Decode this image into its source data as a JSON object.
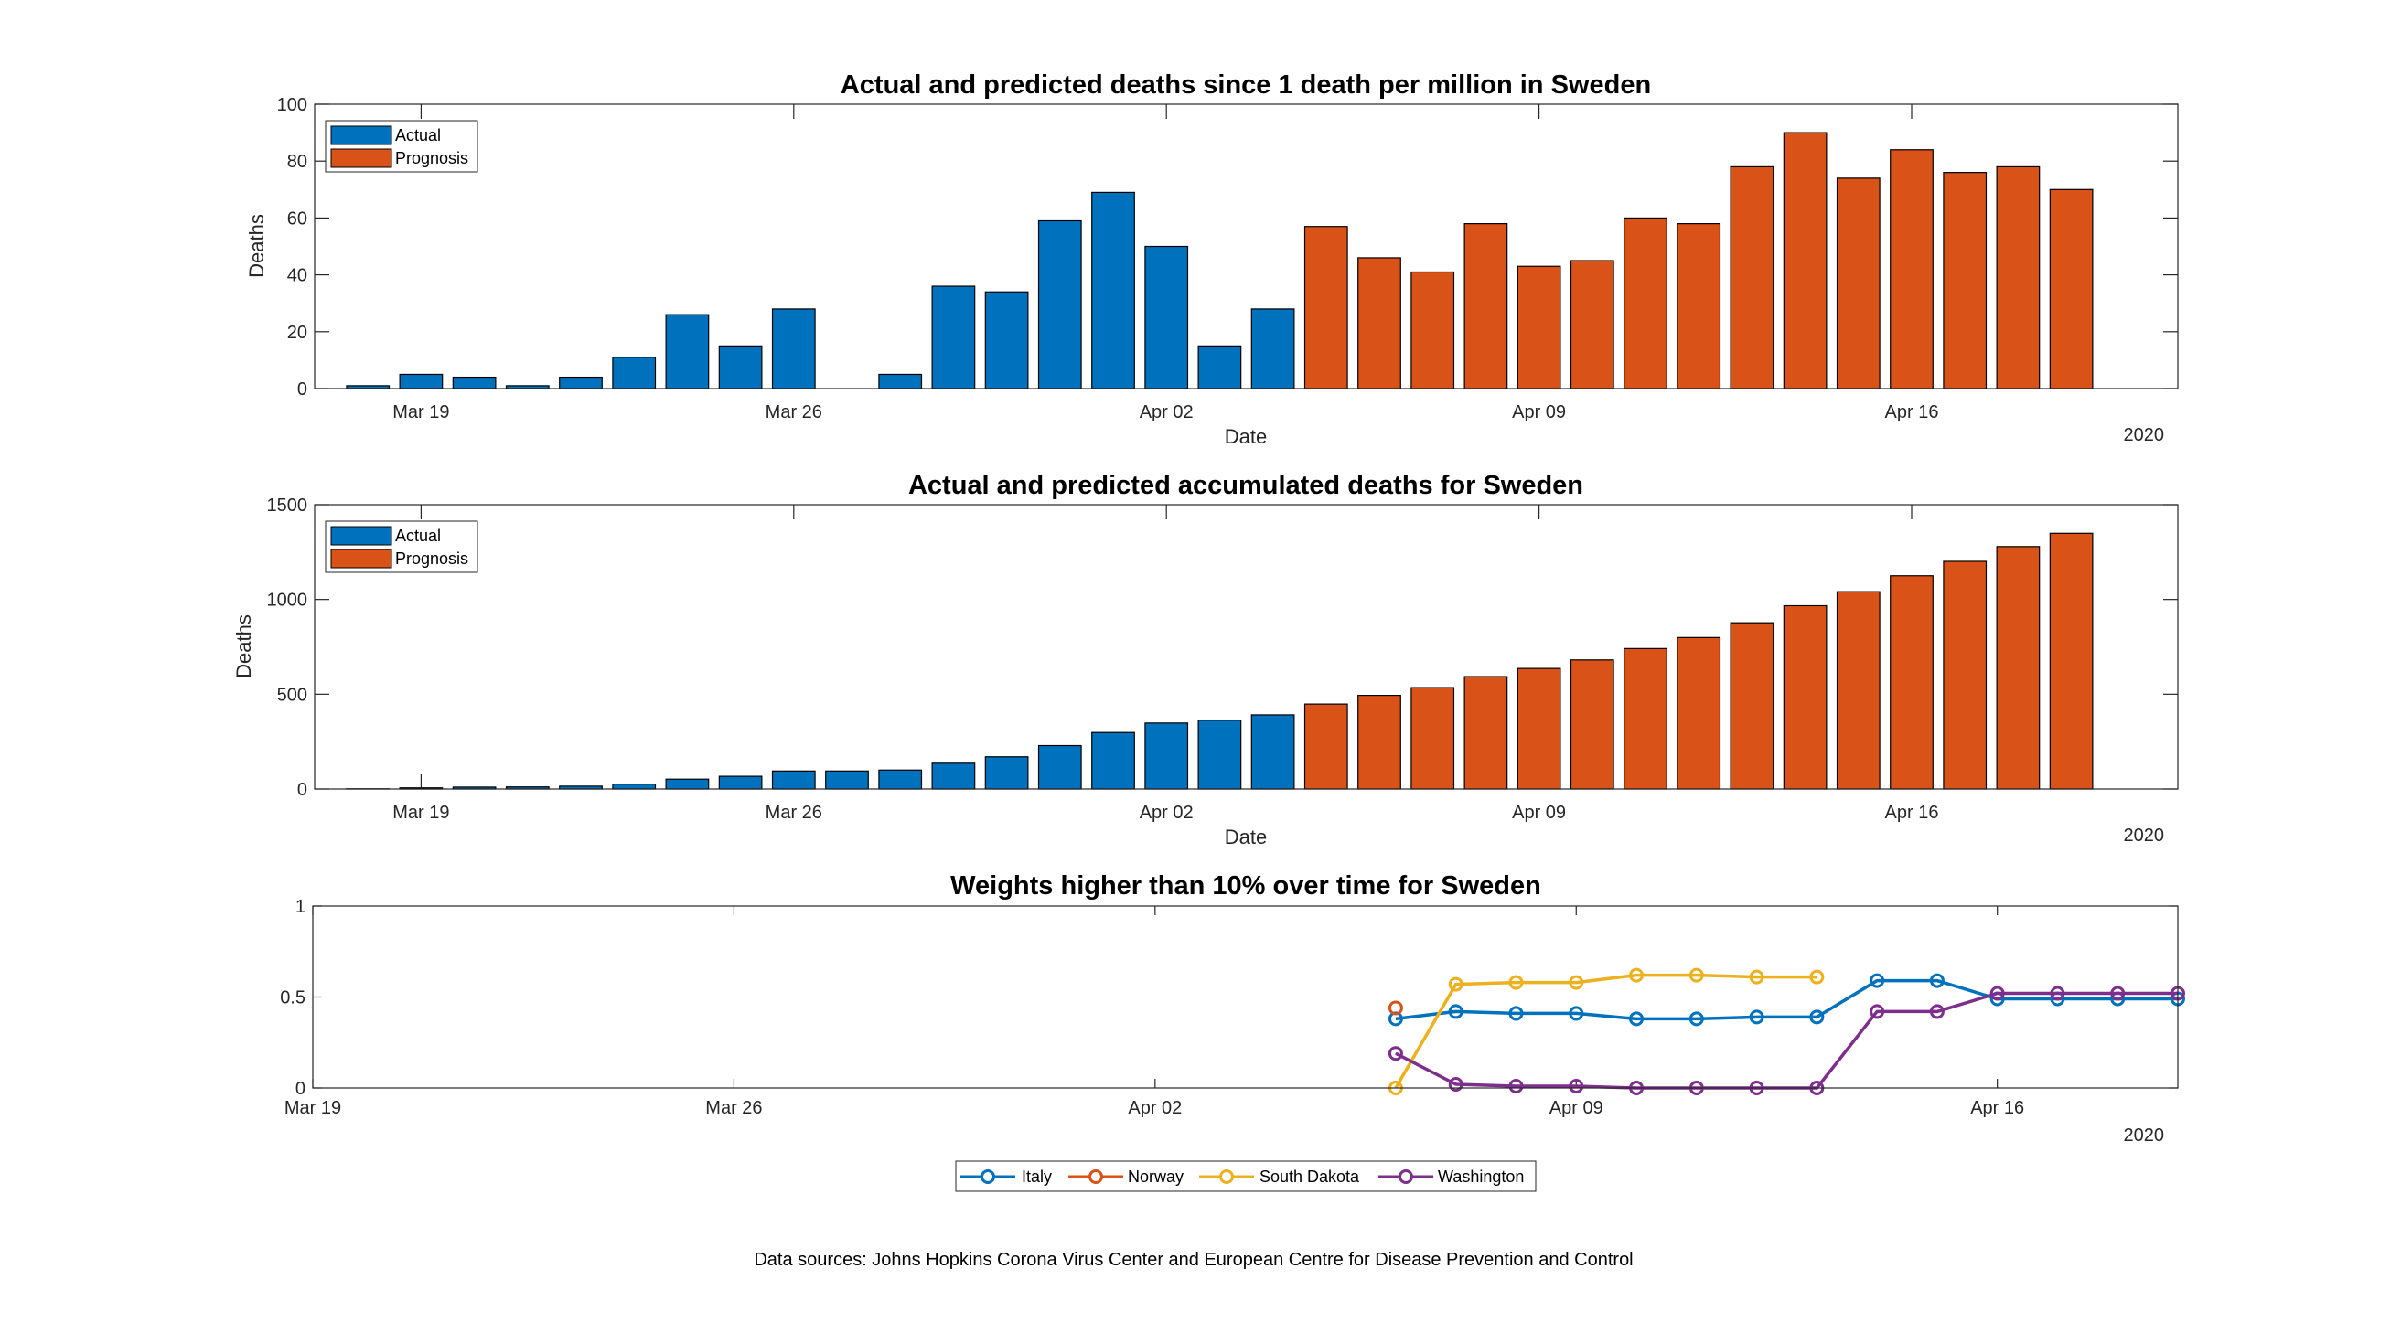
{
  "chart_data": [
    {
      "type": "bar",
      "title": "Actual and predicted deaths since 1 death per million in Sweden",
      "xlabel": "Date",
      "ylabel": "Deaths",
      "year_label": "2020",
      "ylim": [
        0,
        100
      ],
      "yticks": [
        0,
        20,
        40,
        60,
        80,
        100
      ],
      "xlim": [
        "2020-03-17",
        "2020-04-21"
      ],
      "xticks": [
        "Mar 19",
        "Mar 26",
        "Apr 02",
        "Apr 09",
        "Apr 16"
      ],
      "xtick_dates": [
        "2020-03-19",
        "2020-03-26",
        "2020-04-02",
        "2020-04-09",
        "2020-04-16"
      ],
      "legend_position": "top-left",
      "series": [
        {
          "name": "Actual",
          "color": "#0072BD",
          "x": [
            "2020-03-18",
            "2020-03-19",
            "2020-03-20",
            "2020-03-21",
            "2020-03-22",
            "2020-03-23",
            "2020-03-24",
            "2020-03-25",
            "2020-03-26",
            "2020-03-27",
            "2020-03-28",
            "2020-03-29",
            "2020-03-30",
            "2020-03-31",
            "2020-04-01",
            "2020-04-02",
            "2020-04-03",
            "2020-04-04",
            "2020-04-05"
          ],
          "values": [
            1,
            5,
            4,
            1,
            4,
            11,
            26,
            15,
            28,
            0,
            5,
            36,
            34,
            59,
            69,
            50,
            15,
            28,
            0
          ]
        },
        {
          "name": "Prognosis",
          "color": "#D95319",
          "x": [
            "2020-04-05",
            "2020-04-06",
            "2020-04-07",
            "2020-04-08",
            "2020-04-09",
            "2020-04-10",
            "2020-04-11",
            "2020-04-12",
            "2020-04-13",
            "2020-04-14",
            "2020-04-15",
            "2020-04-16",
            "2020-04-17",
            "2020-04-18",
            "2020-04-19"
          ],
          "values": [
            57,
            46,
            41,
            58,
            43,
            45,
            60,
            58,
            78,
            90,
            74,
            84,
            76,
            78,
            70
          ]
        }
      ]
    },
    {
      "type": "bar",
      "title": "Actual and predicted accumulated deaths for Sweden",
      "xlabel": "Date",
      "ylabel": "Deaths",
      "year_label": "2020",
      "ylim": [
        0,
        1500
      ],
      "yticks": [
        0,
        500,
        1000,
        1500
      ],
      "xlim": [
        "2020-03-17",
        "2020-04-21"
      ],
      "xticks": [
        "Mar 19",
        "Mar 26",
        "Apr 02",
        "Apr 09",
        "Apr 16"
      ],
      "xtick_dates": [
        "2020-03-19",
        "2020-03-26",
        "2020-04-02",
        "2020-04-09",
        "2020-04-16"
      ],
      "legend_position": "top-left",
      "series": [
        {
          "name": "Actual",
          "color": "#0072BD",
          "x": [
            "2020-03-18",
            "2020-03-19",
            "2020-03-20",
            "2020-03-21",
            "2020-03-22",
            "2020-03-23",
            "2020-03-24",
            "2020-03-25",
            "2020-03-26",
            "2020-03-27",
            "2020-03-28",
            "2020-03-29",
            "2020-03-30",
            "2020-03-31",
            "2020-04-01",
            "2020-04-02",
            "2020-04-03",
            "2020-04-04"
          ],
          "values": [
            1,
            6,
            10,
            11,
            15,
            26,
            52,
            67,
            95,
            95,
            100,
            136,
            170,
            229,
            298,
            348,
            363,
            391
          ]
        },
        {
          "name": "Prognosis",
          "color": "#D95319",
          "x": [
            "2020-04-05",
            "2020-04-06",
            "2020-04-07",
            "2020-04-08",
            "2020-04-09",
            "2020-04-10",
            "2020-04-11",
            "2020-04-12",
            "2020-04-13",
            "2020-04-14",
            "2020-04-15",
            "2020-04-16",
            "2020-04-17",
            "2020-04-18",
            "2020-04-19"
          ],
          "values": [
            448,
            494,
            535,
            593,
            636,
            681,
            741,
            799,
            877,
            967,
            1041,
            1125,
            1201,
            1279,
            1349
          ]
        }
      ]
    },
    {
      "type": "line",
      "title": "Weights higher than 10% over time for Sweden",
      "year_label": "2020",
      "ylim": [
        0,
        1
      ],
      "yticks": [
        "0",
        "0.5",
        "1"
      ],
      "ytick_values": [
        0,
        0.5,
        1
      ],
      "xlim": [
        "2020-03-19",
        "2020-04-19"
      ],
      "xticks": [
        "Mar 19",
        "Mar 26",
        "Apr 02",
        "Apr 09",
        "Apr 16"
      ],
      "xtick_dates": [
        "2020-03-19",
        "2020-03-26",
        "2020-04-02",
        "2020-04-09",
        "2020-04-16"
      ],
      "legend_position": "bottom-outside",
      "series": [
        {
          "name": "Italy",
          "color": "#0072BD",
          "x": [
            "2020-04-06",
            "2020-04-07",
            "2020-04-08",
            "2020-04-09",
            "2020-04-10",
            "2020-04-11",
            "2020-04-12",
            "2020-04-13",
            "2020-04-14",
            "2020-04-15",
            "2020-04-16",
            "2020-04-17",
            "2020-04-18",
            "2020-04-19"
          ],
          "values": [
            0.38,
            0.42,
            0.41,
            0.41,
            0.38,
            0.38,
            0.39,
            0.39,
            0.59,
            0.59,
            0.49,
            0.49,
            0.49,
            0.49
          ]
        },
        {
          "name": "Norway",
          "color": "#D95319",
          "x": [
            "2020-04-06"
          ],
          "values": [
            0.44
          ]
        },
        {
          "name": "South Dakota",
          "color": "#EDB120",
          "x": [
            "2020-04-06",
            "2020-04-07",
            "2020-04-08",
            "2020-04-09",
            "2020-04-10",
            "2020-04-11",
            "2020-04-12",
            "2020-04-13"
          ],
          "values": [
            0.0,
            0.57,
            0.58,
            0.58,
            0.62,
            0.62,
            0.61,
            0.61
          ]
        },
        {
          "name": "Washington",
          "color": "#7E2F8E",
          "x": [
            "2020-04-06",
            "2020-04-07",
            "2020-04-08",
            "2020-04-09",
            "2020-04-10",
            "2020-04-11",
            "2020-04-12",
            "2020-04-13",
            "2020-04-14",
            "2020-04-15",
            "2020-04-16",
            "2020-04-17",
            "2020-04-18",
            "2020-04-19"
          ],
          "values": [
            0.19,
            0.02,
            0.01,
            0.01,
            0.0,
            0.0,
            0.0,
            0.0,
            0.42,
            0.42,
            0.52,
            0.52,
            0.52,
            0.52
          ]
        }
      ]
    }
  ],
  "footer": {
    "source": "Data sources: Johns Hopkins Corona Virus Center and European Centre for Disease Prevention and Control"
  }
}
